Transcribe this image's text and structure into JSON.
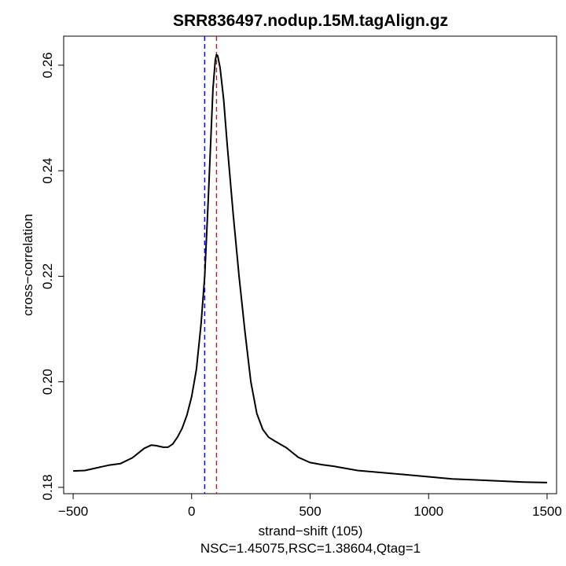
{
  "chart_data": {
    "type": "line",
    "title": "SRR836497.nodup.15M.tagAlign.gz",
    "xlabel": "strand−shift (105)",
    "ylabel": "cross−correlation",
    "subtitle": "NSC=1.45075,RSC=1.38604,Qtag=1",
    "xlim": [
      -540,
      1540
    ],
    "ylim": [
      0.1788,
      0.2655
    ],
    "xticks": [
      {
        "value": -500,
        "label": "−500"
      },
      {
        "value": 0,
        "label": "0"
      },
      {
        "value": 500,
        "label": "500"
      },
      {
        "value": 1000,
        "label": "1000"
      },
      {
        "value": 1500,
        "label": "1500"
      }
    ],
    "yticks": [
      {
        "value": 0.18,
        "label": "0.18"
      },
      {
        "value": 0.2,
        "label": "0.20"
      },
      {
        "value": 0.22,
        "label": "0.22"
      },
      {
        "value": 0.24,
        "label": "0.24"
      },
      {
        "value": 0.26,
        "label": "0.26"
      }
    ],
    "vlines": [
      {
        "x": 55,
        "color": "#0000ff",
        "style": "dashed"
      },
      {
        "x": 105,
        "color": "#ff0000",
        "style": "dashed"
      }
    ],
    "series": [
      {
        "color": "#000000",
        "x": [
          -500,
          -450,
          -400,
          -350,
          -300,
          -250,
          -200,
          -170,
          -150,
          -120,
          -100,
          -80,
          -60,
          -40,
          -20,
          0,
          20,
          40,
          55,
          70,
          80,
          90,
          100,
          105,
          110,
          120,
          135,
          150,
          175,
          200,
          225,
          250,
          275,
          300,
          325,
          350,
          400,
          450,
          500,
          550,
          600,
          700,
          800,
          900,
          1000,
          1100,
          1200,
          1300,
          1400,
          1500
        ],
        "y": [
          0.1831,
          0.1832,
          0.1837,
          0.1842,
          0.1845,
          0.1856,
          0.1874,
          0.188,
          0.1879,
          0.1876,
          0.1876,
          0.1882,
          0.1895,
          0.1912,
          0.1937,
          0.1972,
          0.2023,
          0.211,
          0.22,
          0.2345,
          0.245,
          0.2555,
          0.261,
          0.262,
          0.2618,
          0.2595,
          0.2535,
          0.245,
          0.232,
          0.22,
          0.2095,
          0.2,
          0.194,
          0.191,
          0.1895,
          0.1888,
          0.1875,
          0.1857,
          0.1847,
          0.1843,
          0.184,
          0.1832,
          0.1828,
          0.1824,
          0.182,
          0.1816,
          0.1814,
          0.1812,
          0.181,
          0.1809
        ]
      }
    ],
    "grid": false,
    "legend": "none"
  }
}
